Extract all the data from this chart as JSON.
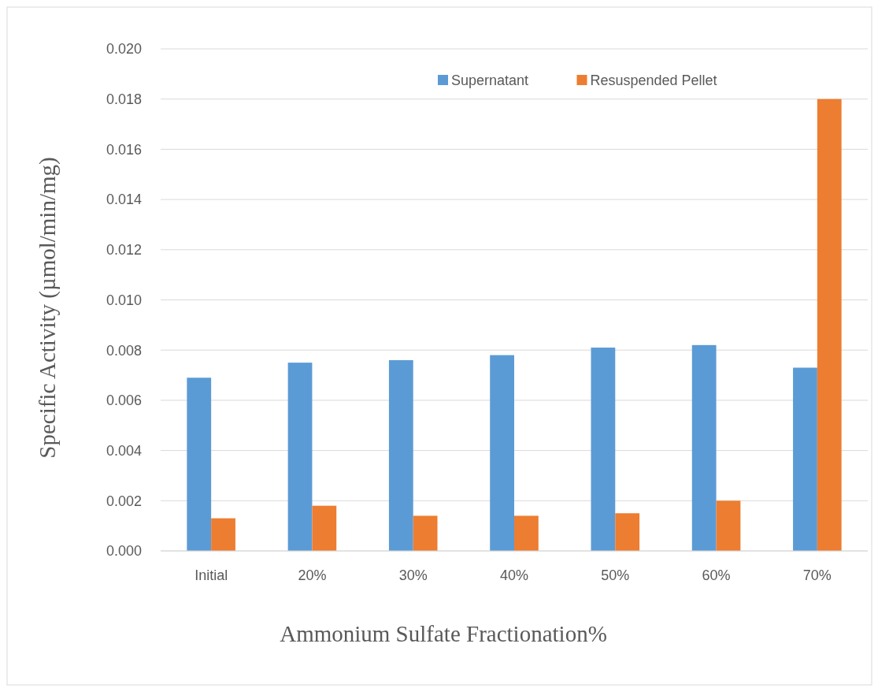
{
  "chart_data": {
    "type": "bar",
    "xlabel": "Ammonium Sulfate Fractionation%",
    "ylabel": "Specific Activity (µmol/min/mg)",
    "categories": [
      "Initial",
      "20%",
      "30%",
      "40%",
      "50%",
      "60%",
      "70%"
    ],
    "series": [
      {
        "name": "Supernatant",
        "color": "#5b9bd5",
        "values": [
          0.0069,
          0.0075,
          0.0076,
          0.0078,
          0.0081,
          0.0082,
          0.0073
        ]
      },
      {
        "name": "Resuspended Pellet",
        "color": "#ed7d31",
        "values": [
          0.0013,
          0.0018,
          0.0014,
          0.0014,
          0.0015,
          0.002,
          0.018
        ]
      }
    ],
    "ylim": [
      0,
      0.02
    ],
    "yticks": [
      {
        "value": 0,
        "label": "0.000"
      },
      {
        "value": 0.002,
        "label": "0.002"
      },
      {
        "value": 0.004,
        "label": "0.004"
      },
      {
        "value": 0.006,
        "label": "0.006"
      },
      {
        "value": 0.008,
        "label": "0.008"
      },
      {
        "value": 0.01,
        "label": "0.010"
      },
      {
        "value": 0.012,
        "label": "0.012"
      },
      {
        "value": 0.014,
        "label": "0.014"
      },
      {
        "value": 0.016,
        "label": "0.016"
      },
      {
        "value": 0.018,
        "label": "0.018"
      },
      {
        "value": 0.02,
        "label": "0.020"
      }
    ],
    "grid": "y",
    "legend": "top right"
  }
}
